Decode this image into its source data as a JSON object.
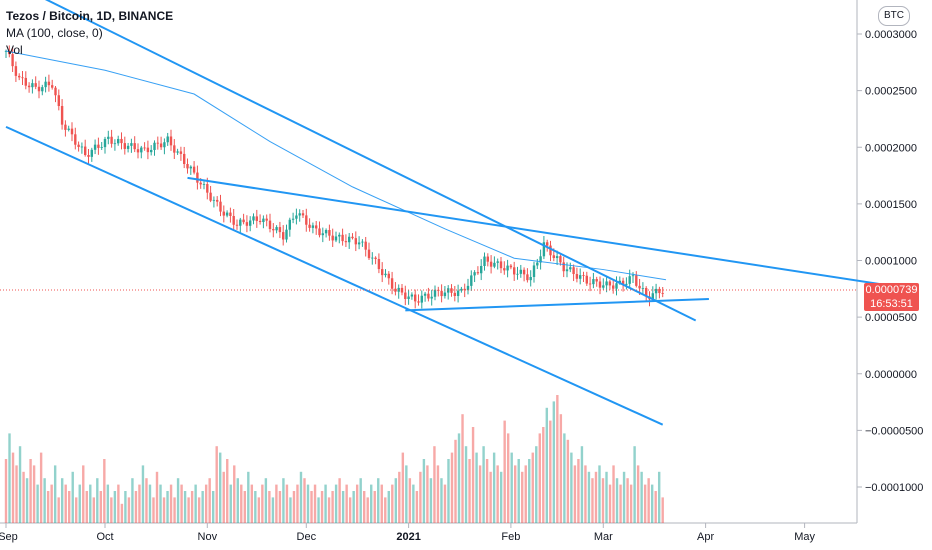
{
  "header": {
    "title": "Tezos / Bitcoin, 1D, BINANCE",
    "indicator": "MA (100, close, 0)",
    "volume_label": "Vol"
  },
  "currency_button": "BTC",
  "price_tag": {
    "price": "0.0000739",
    "countdown": "16:53:51"
  },
  "colors": {
    "up": "#26a69a",
    "down": "#ef5350",
    "trendline": "#2196f3",
    "ma": "#2196f3"
  },
  "chart_data": {
    "type": "candlestick",
    "x_axis_labels": [
      "Sep",
      "Oct",
      "Nov",
      "Dec",
      "2021",
      "Feb",
      "Mar",
      "Apr",
      "May"
    ],
    "y_axis_labels": [
      "0.0003000",
      "0.0002500",
      "0.0002000",
      "0.0001500",
      "0.0001000",
      "0.0000500",
      "0.0000000",
      "−0.0000500",
      "−0.0001000"
    ],
    "y_ticks": [
      0.0003,
      0.00025,
      0.0002,
      0.00015,
      0.0001,
      5e-05,
      0,
      -5e-05,
      -0.0001
    ],
    "ylim": [
      -0.000128,
      0.000325
    ],
    "current_price": 7.39e-05,
    "close_path": [
      [
        "2020-09-01",
        0.000285
      ],
      [
        "2020-09-05",
        0.00026
      ],
      [
        "2020-09-10",
        0.000252
      ],
      [
        "2020-09-15",
        0.000256
      ],
      [
        "2020-09-18",
        0.000222
      ],
      [
        "2020-09-25",
        0.000193
      ],
      [
        "2020-10-02",
        0.000207
      ],
      [
        "2020-10-08",
        0.000201
      ],
      [
        "2020-10-13",
        0.000197
      ],
      [
        "2020-10-20",
        0.000206
      ],
      [
        "2020-10-27",
        0.00018
      ],
      [
        "2020-11-01",
        0.00016
      ],
      [
        "2020-11-05",
        0.000145
      ],
      [
        "2020-11-10",
        0.000132
      ],
      [
        "2020-11-17",
        0.000137
      ],
      [
        "2020-11-24",
        0.000122
      ],
      [
        "2020-11-28",
        0.000143
      ],
      [
        "2020-12-03",
        0.000128
      ],
      [
        "2020-12-10",
        0.00012
      ],
      [
        "2020-12-17",
        0.000117
      ],
      [
        "2020-12-22",
        9.8e-05
      ],
      [
        "2020-12-28",
        7.4e-05
      ],
      [
        "2021-01-03",
        6.5e-05
      ],
      [
        "2021-01-10",
        7.2e-05
      ],
      [
        "2021-01-17",
        7.2e-05
      ],
      [
        "2021-01-24",
        0.0001
      ],
      [
        "2021-01-31",
        9.3e-05
      ],
      [
        "2021-02-07",
        8.5e-05
      ],
      [
        "2021-02-11",
        0.000114
      ],
      [
        "2021-02-17",
        9.4e-05
      ],
      [
        "2021-02-24",
        8.2e-05
      ],
      [
        "2021-03-02",
        7.8e-05
      ],
      [
        "2021-03-06",
        7.9e-05
      ],
      [
        "2021-03-10",
        8.5e-05
      ],
      [
        "2021-03-14",
        6.8e-05
      ],
      [
        "2021-03-19",
        7.4e-05
      ]
    ],
    "ma_path": [
      [
        "2020-09-01",
        0.000285
      ],
      [
        "2020-10-01",
        0.000268
      ],
      [
        "2020-10-28",
        0.000247
      ],
      [
        "2020-11-20",
        0.000205
      ],
      [
        "2020-12-15",
        0.000165
      ],
      [
        "2021-01-12",
        0.000128
      ],
      [
        "2021-02-02",
        0.000102
      ],
      [
        "2021-03-01",
        9.2e-05
      ],
      [
        "2021-03-20",
        8.3e-05
      ]
    ],
    "trendlines": [
      [
        [
          "2020-09-01",
          0.000348
        ],
        [
          "2021-03-29",
          4.7e-05
        ]
      ],
      [
        [
          "2020-09-01",
          0.000218
        ],
        [
          "2021-03-19",
          -4.5e-05
        ]
      ],
      [
        [
          "2020-10-26",
          0.000173
        ],
        [
          "2021-05-31",
          7.6e-05
        ]
      ],
      [
        [
          "2020-12-31",
          5.6e-05
        ],
        [
          "2021-04-02",
          6.6e-05
        ]
      ]
    ],
    "volume_profile": [
      0.5,
      0.7,
      0.55,
      0.45,
      0.6,
      0.4,
      0.35,
      0.5,
      0.45,
      0.3,
      0.55,
      0.35,
      0.25,
      0.3,
      0.45,
      0.2,
      0.35,
      0.3,
      0.25,
      0.4,
      0.2,
      0.3,
      0.45,
      0.25,
      0.3,
      0.2,
      0.35,
      0.25,
      0.5,
      0.3,
      0.2,
      0.25,
      0.3,
      0.15,
      0.25,
      0.2,
      0.35,
      0.25,
      0.3,
      0.45,
      0.35,
      0.3,
      0.2,
      0.4,
      0.3,
      0.2,
      0.25,
      0.3,
      0.2,
      0.35,
      0.3,
      0.25,
      0.2,
      0.25,
      0.3,
      0.2,
      0.25,
      0.3,
      0.35,
      0.25,
      0.6,
      0.55,
      0.4,
      0.5,
      0.3,
      0.45,
      0.35,
      0.3,
      0.25,
      0.4,
      0.3,
      0.25,
      0.2,
      0.3,
      0.35,
      0.25,
      0.2,
      0.3,
      0.25,
      0.35,
      0.3,
      0.2,
      0.25,
      0.3,
      0.4,
      0.35,
      0.3,
      0.25,
      0.3,
      0.2,
      0.25,
      0.3,
      0.2,
      0.25,
      0.3,
      0.35,
      0.25,
      0.3,
      0.2,
      0.25,
      0.3,
      0.35,
      0.25,
      0.2,
      0.3,
      0.25,
      0.35,
      0.3,
      0.2,
      0.25,
      0.3,
      0.35,
      0.4,
      0.55,
      0.45,
      0.35,
      0.3,
      0.25,
      0.4,
      0.5,
      0.45,
      0.35,
      0.6,
      0.45,
      0.35,
      0.3,
      0.5,
      0.55,
      0.65,
      0.7,
      0.85,
      0.6,
      0.5,
      0.75,
      0.55,
      0.45,
      0.6,
      0.5,
      0.4,
      0.55,
      0.45,
      0.4,
      0.8,
      0.7,
      0.55,
      0.45,
      0.5,
      0.4,
      0.45,
      0.5,
      0.55,
      0.6,
      0.7,
      0.75,
      0.9,
      0.8,
      0.95,
      1.0,
      0.85,
      0.7,
      0.65,
      0.55,
      0.45,
      0.5,
      0.6,
      0.45,
      0.4,
      0.35,
      0.4,
      0.45,
      0.35,
      0.4,
      0.3,
      0.45,
      0.35,
      0.3,
      0.4,
      0.35,
      0.3,
      0.6,
      0.45,
      0.4,
      0.3,
      0.35,
      0.3,
      0.25,
      0.4,
      0.2
    ]
  }
}
